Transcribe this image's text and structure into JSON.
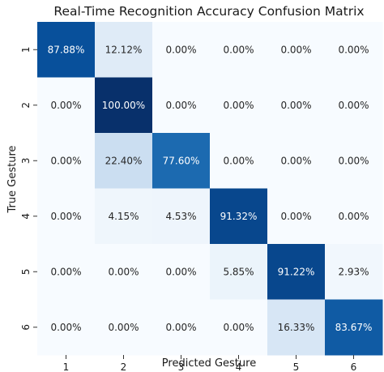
{
  "chart_data": {
    "type": "heatmap",
    "title": "Real-Time Recognition Accuracy Confusion Matrix",
    "xlabel": "Predicted Gesture",
    "ylabel": "True Gesture",
    "x_categories": [
      "1",
      "2",
      "3",
      "4",
      "5",
      "6"
    ],
    "y_categories": [
      "1",
      "2",
      "3",
      "4",
      "5",
      "6"
    ],
    "values": [
      [
        87.88,
        12.12,
        0.0,
        0.0,
        0.0,
        0.0
      ],
      [
        0.0,
        100.0,
        0.0,
        0.0,
        0.0,
        0.0
      ],
      [
        0.0,
        22.4,
        77.6,
        0.0,
        0.0,
        0.0
      ],
      [
        0.0,
        4.15,
        4.53,
        91.32,
        0.0,
        0.0
      ],
      [
        0.0,
        0.0,
        0.0,
        5.85,
        91.22,
        2.93
      ],
      [
        0.0,
        0.0,
        0.0,
        0.0,
        16.33,
        83.67
      ]
    ],
    "cell_labels": [
      [
        "87.88%",
        "12.12%",
        "0.00%",
        "0.00%",
        "0.00%",
        "0.00%"
      ],
      [
        "0.00%",
        "100.00%",
        "0.00%",
        "0.00%",
        "0.00%",
        "0.00%"
      ],
      [
        "0.00%",
        "22.40%",
        "77.60%",
        "0.00%",
        "0.00%",
        "0.00%"
      ],
      [
        "0.00%",
        "4.15%",
        "4.53%",
        "91.32%",
        "0.00%",
        "0.00%"
      ],
      [
        "0.00%",
        "0.00%",
        "0.00%",
        "5.85%",
        "91.22%",
        "2.93%"
      ],
      [
        "0.00%",
        "0.00%",
        "0.00%",
        "0.00%",
        "16.33%",
        "83.67%"
      ]
    ],
    "value_range": [
      0,
      100
    ],
    "colormap": "Blues",
    "colors": {
      "low": "#f7fbff",
      "high": "#08306b",
      "text_dark": "#262626",
      "text_light": "#ffffff"
    },
    "grid": false,
    "colorbar": false
  }
}
